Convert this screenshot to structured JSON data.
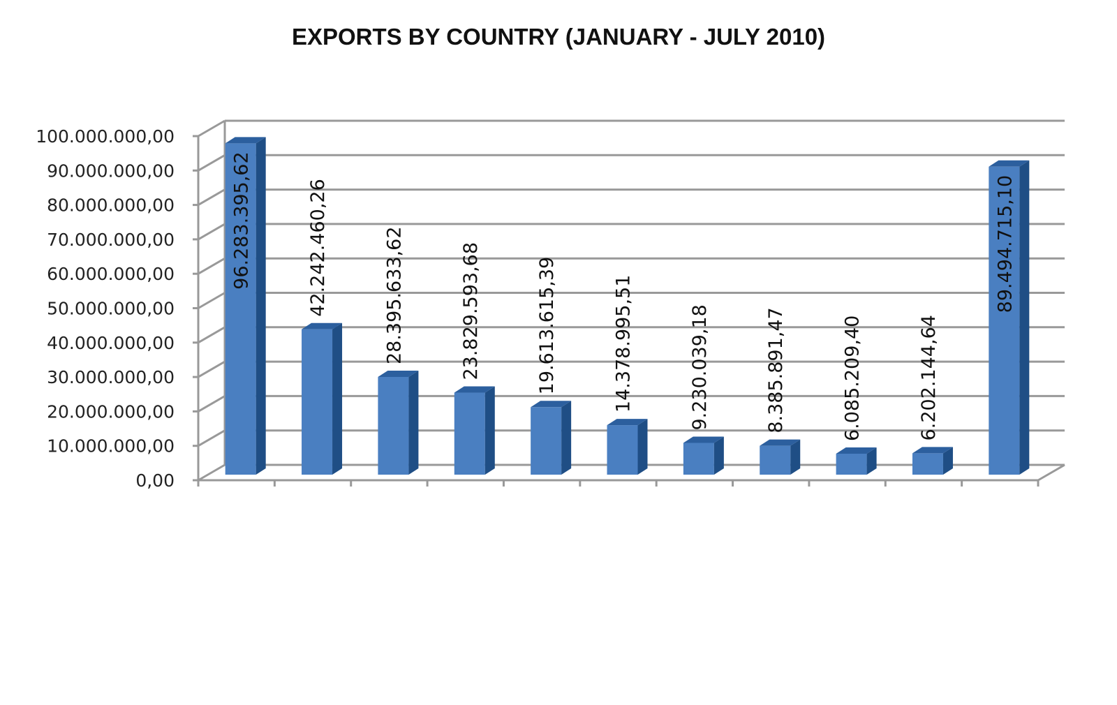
{
  "chart_data": {
    "type": "bar",
    "title": "EXPORTS BY COUNTRY (JANUARY - JULY 2010)",
    "categories": [
      "",
      "",
      "",
      "",
      "",
      "",
      "",
      "",
      "",
      "",
      ""
    ],
    "series": [
      {
        "values": [
          96283395.62,
          42242460.26,
          28395633.62,
          23829593.68,
          19613615.39,
          14378995.51,
          9230039.18,
          8385891.47,
          6085209.4,
          6202144.64,
          89494715.1
        ],
        "data_labels": [
          "96.283.395,62",
          "42.242.460,26",
          "28.395.633,62",
          "23.829.593,68",
          "19.613.615,39",
          "14.378.995,51",
          "9.230.039,18",
          "8.385.891,47",
          "6.085.209,40",
          "6.202.144,64",
          "89.494.715,10"
        ]
      }
    ],
    "ylim": [
      0,
      100000000
    ],
    "yticks": [
      "0,00",
      "10.000.000,00",
      "20.000.000,00",
      "30.000.000,00",
      "40.000.000,00",
      "50.000.000,00",
      "60.000.000,00",
      "70.000.000,00",
      "80.000.000,00",
      "90.000.000,00",
      "100.000.000,00"
    ],
    "grid": true,
    "legend": "none",
    "colors": {
      "bar_front": "#4a7fc1",
      "bar_side": "#1f4e85",
      "bar_top": "#2c5f9e",
      "grid": "#999999"
    }
  }
}
